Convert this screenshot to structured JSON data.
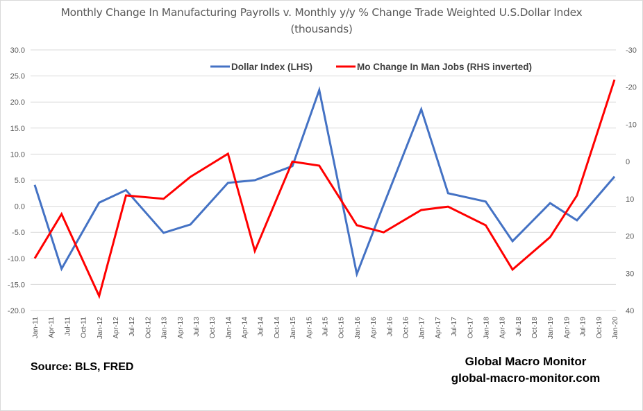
{
  "chart_data": {
    "type": "line",
    "title": "Monthly Change In Manufacturing Payrolls v. Monthly y/y % Change Trade Weighted U.S.Dollar Index",
    "subtitle": "(thousands)",
    "xlabel": "",
    "ylabel_left": "",
    "ylabel_right": "",
    "x_tick_labels": [
      "Jan-11",
      "Apr-11",
      "Jul-11",
      "Oct-11",
      "Jan-12",
      "Apr-12",
      "Jul-12",
      "Oct-12",
      "Jan-13",
      "Apr-13",
      "Jul-13",
      "Oct-13",
      "Jan-14",
      "Apr-14",
      "Jul-14",
      "Oct-14",
      "Jan-15",
      "Apr-15",
      "Jul-15",
      "Oct-15",
      "Jan-16",
      "Apr-16",
      "Jul-16",
      "Oct-16",
      "Jan-17",
      "Apr-17",
      "Jul-17",
      "Oct-17",
      "Jan-18",
      "Apr-18",
      "Jul-18",
      "Oct-18",
      "Jan-19",
      "Apr-19",
      "Jul-19",
      "Oct-19",
      "Jan-20"
    ],
    "x": [
      "2011-01",
      "2011-06",
      "2012-01",
      "2012-06",
      "2013-01",
      "2013-06",
      "2014-01",
      "2014-06",
      "2015-01",
      "2015-06",
      "2016-01",
      "2016-06",
      "2017-01",
      "2017-06",
      "2018-01",
      "2018-06",
      "2019-01",
      "2019-06",
      "2020-01"
    ],
    "y_left": {
      "range": [
        -20,
        30
      ],
      "ticks": [
        "30.0",
        "25.0",
        "20.0",
        "15.0",
        "10.0",
        "5.0",
        "0.0",
        "-5.0",
        "-10.0",
        "-15.0",
        "-20.0"
      ],
      "tick_values": [
        30,
        25,
        20,
        15,
        10,
        5,
        0,
        -5,
        -10,
        -15,
        -20
      ]
    },
    "y_right": {
      "range": [
        -30,
        40
      ],
      "inverted": true,
      "ticks": [
        "-30",
        "-20",
        "-10",
        "0",
        "10",
        "20",
        "30",
        "40"
      ],
      "tick_values": [
        -30,
        -20,
        -10,
        0,
        10,
        20,
        30,
        40
      ]
    },
    "grid": true,
    "legend_position": "top-center",
    "series": [
      {
        "name": "Dollar Index (LHS)",
        "axis": "left",
        "color": "#4472c4",
        "values": [
          4.1,
          -12.0,
          0.7,
          3.1,
          -5.1,
          -3.5,
          4.5,
          5.0,
          7.7,
          22.3,
          -13.0,
          0.3,
          18.6,
          2.5,
          0.9,
          -6.7,
          0.6,
          -2.7,
          5.7
        ]
      },
      {
        "name": "Mo Change In Man Jobs (RHS inverted)",
        "axis": "right",
        "color": "#ff0000",
        "values": [
          26.0,
          14.1,
          36.1,
          9.1,
          10.0,
          4.1,
          -2.1,
          24.0,
          0.0,
          1.1,
          17.1,
          19.0,
          13.0,
          12.1,
          17.1,
          29.0,
          20.3,
          9.1,
          -22.0
        ]
      }
    ]
  },
  "footer": {
    "source": "Source:  BLS, FRED",
    "brand_name": "Global  Macro  Monitor",
    "brand_url": "global-macro-monitor.com"
  }
}
